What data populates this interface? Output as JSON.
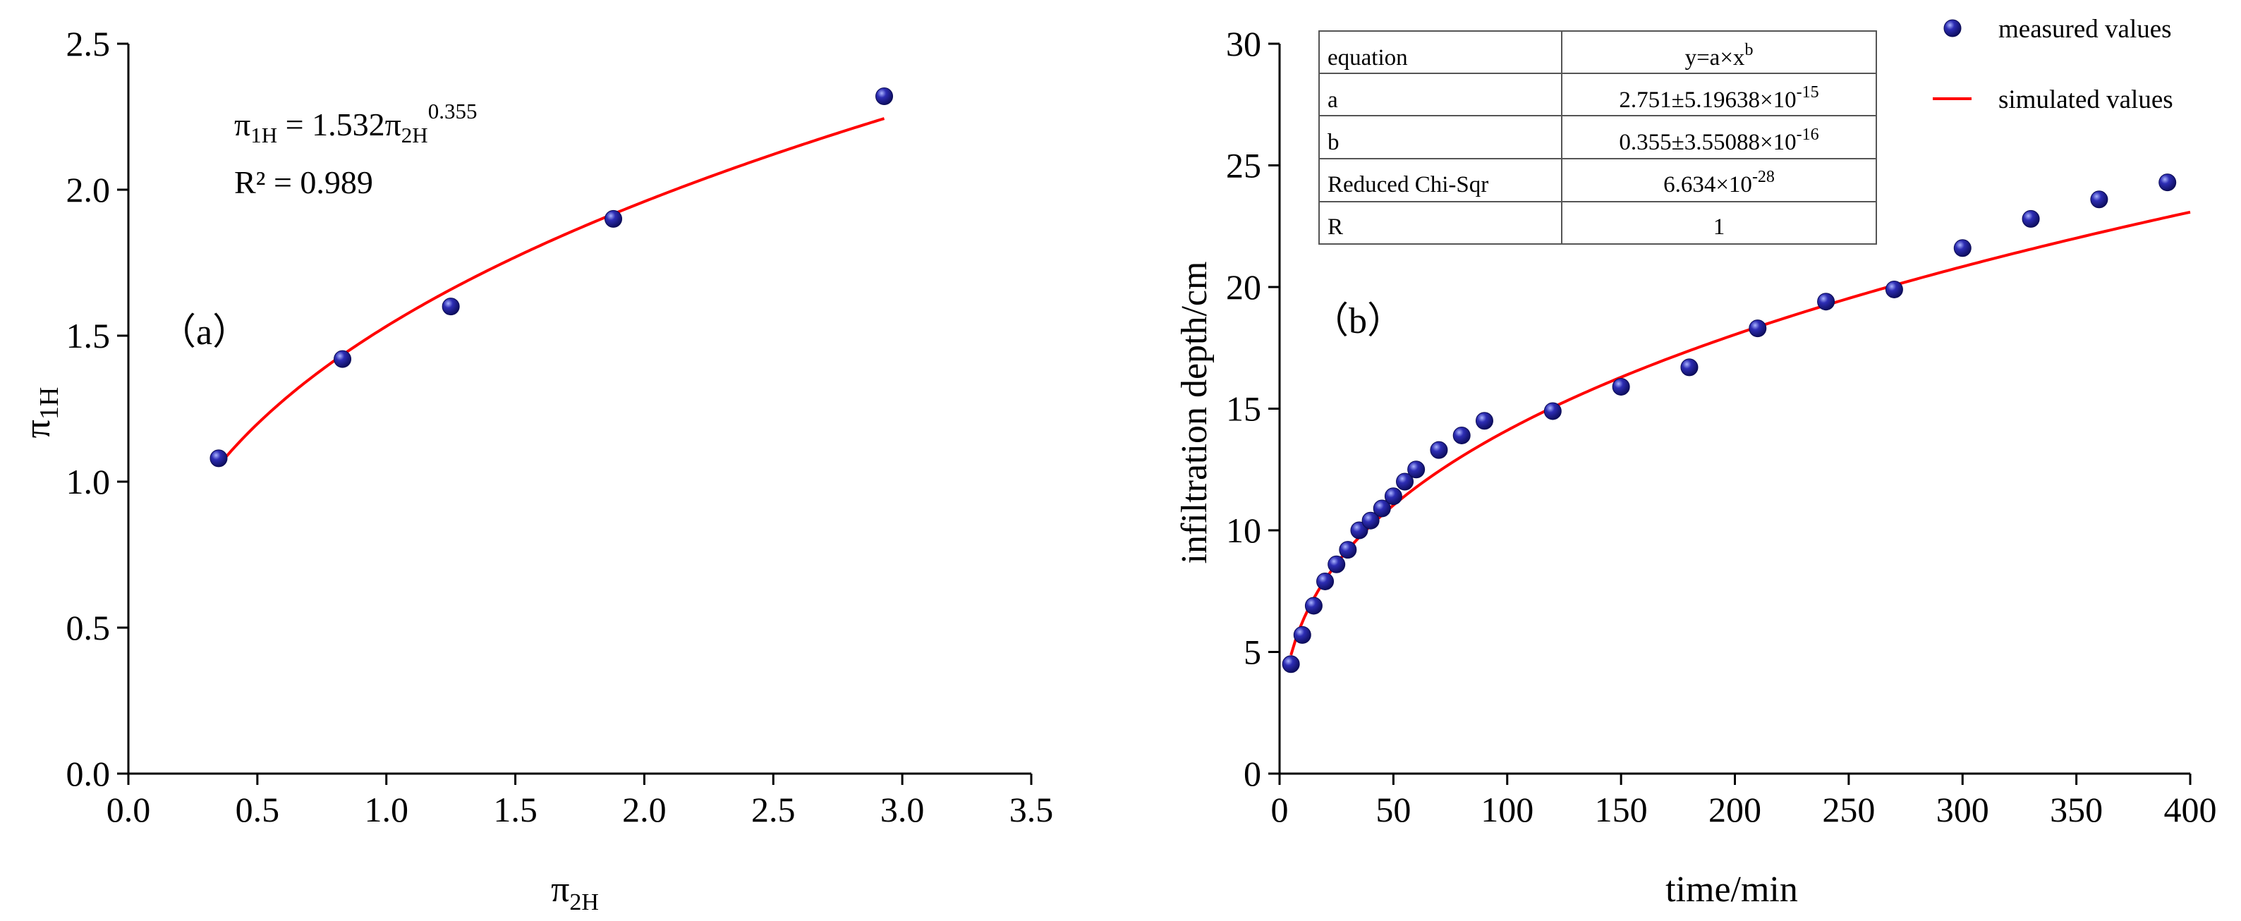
{
  "chart_data": [
    {
      "type": "scatter",
      "panel_label": "（a）",
      "xlabel": {
        "base": "π",
        "sub": "2H"
      },
      "ylabel": {
        "base": "π",
        "sub": "1H"
      },
      "xlim": [
        0,
        3.5
      ],
      "ylim": [
        0,
        2.5
      ],
      "xticks": [
        0.0,
        0.5,
        1.0,
        1.5,
        2.0,
        2.5,
        3.0,
        3.5
      ],
      "xtick_labels": [
        "0.0",
        "0.5",
        "1.0",
        "1.5",
        "2.0",
        "2.5",
        "3.0",
        "3.5"
      ],
      "yticks": [
        0.0,
        0.5,
        1.0,
        1.5,
        2.0,
        2.5
      ],
      "ytick_labels": [
        "0.0",
        "0.5",
        "1.0",
        "1.5",
        "2.0",
        "2.5"
      ],
      "points": {
        "x": [
          0.35,
          0.83,
          1.25,
          1.88,
          2.93
        ],
        "y": [
          1.08,
          1.42,
          1.6,
          1.9,
          2.32
        ]
      },
      "fit": {
        "a": 1.532,
        "b": 0.355,
        "x_range": [
          0.35,
          2.93
        ]
      },
      "equation": {
        "lhs_base": "π",
        "lhs_sub": "1H",
        "mid": " = 1.532π",
        "sub": "2H",
        "sup": "0.355"
      },
      "r_squared_text": "R² = 0.989",
      "colors": {
        "marker": "#1a1a8c",
        "fit": "#ff0000"
      }
    },
    {
      "type": "scatter",
      "panel_label": "（b）",
      "xlabel": "time/min",
      "ylabel": "infiltration depth/cm",
      "xlim": [
        0,
        400
      ],
      "ylim": [
        0,
        30
      ],
      "xticks": [
        0,
        50,
        100,
        150,
        200,
        250,
        300,
        350,
        400
      ],
      "xtick_labels": [
        "0",
        "50",
        "100",
        "150",
        "200",
        "250",
        "300",
        "350",
        "400"
      ],
      "yticks": [
        0,
        5,
        10,
        15,
        20,
        25,
        30
      ],
      "ytick_labels": [
        "0",
        "5",
        "10",
        "15",
        "20",
        "25",
        "30"
      ],
      "points": {
        "x": [
          5,
          10,
          15,
          20,
          25,
          30,
          35,
          40,
          45,
          50,
          55,
          60,
          70,
          80,
          90,
          120,
          150,
          180,
          210,
          240,
          270,
          300,
          330,
          360,
          390
        ],
        "y": [
          4.5,
          5.7,
          6.9,
          7.9,
          8.6,
          9.2,
          10.0,
          10.4,
          10.9,
          11.4,
          12.0,
          12.5,
          13.3,
          13.9,
          14.5,
          14.9,
          15.9,
          16.7,
          18.3,
          19.4,
          19.9,
          21.6,
          22.8,
          23.6,
          24.3
        ]
      },
      "fit": {
        "a": 2.751,
        "b": 0.355,
        "x_range": [
          5,
          400
        ]
      },
      "legend": {
        "measured": "measured values",
        "simulated": "simulated values",
        "placement": "top-right"
      },
      "table": {
        "placement": "top-left",
        "rows": [
          {
            "label": "equation",
            "base": "y=a×x",
            "sup": "b"
          },
          {
            "label": "a",
            "base": "2.751±5.19638×10",
            "sup": "-15"
          },
          {
            "label": "b",
            "base": "0.355±3.55088×10",
            "sup": "-16"
          },
          {
            "label": "Reduced Chi-Sqr",
            "base": "6.634×10",
            "sup": "-28"
          },
          {
            "label": "R",
            "base": "1",
            "sup": ""
          }
        ]
      },
      "colors": {
        "marker": "#1a1a8c",
        "fit": "#ff0000"
      }
    }
  ]
}
